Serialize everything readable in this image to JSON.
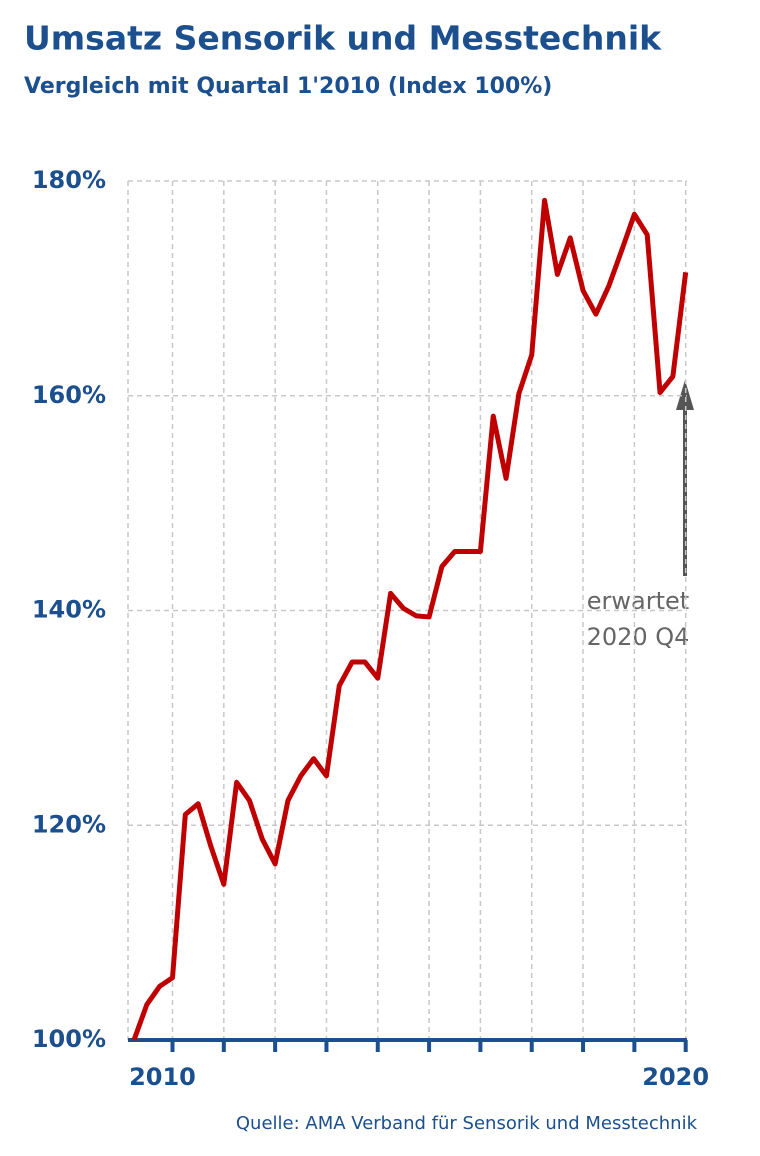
{
  "chart_data": {
    "type": "line",
    "title": "Umsatz Sensorik und Messtechnik",
    "subtitle": "Vergleich mit Quartal 1'2010 (Index 100%)",
    "categories": [
      null,
      null,
      null,
      "2010",
      null,
      null,
      null,
      null,
      null,
      null,
      null,
      null,
      null,
      null,
      null,
      null,
      null,
      null,
      null,
      null,
      null,
      null,
      null,
      null,
      null,
      null,
      null,
      null,
      null,
      null,
      null,
      null,
      null,
      null,
      null,
      null,
      null,
      null,
      null,
      null,
      null,
      null,
      null,
      "2020"
    ],
    "series": [
      {
        "name": "Umsatz",
        "color": "#c00000",
        "values": [
          100,
          103.3,
          105,
          105.8,
          121,
          122,
          118,
          114.5,
          124,
          122.3,
          118.7,
          116.4,
          122.3,
          124.6,
          126.2,
          124.6,
          133,
          135.2,
          135.2,
          133.7,
          141.6,
          140.2,
          139.5,
          139.4,
          144.1,
          145.5,
          145.5,
          145.5,
          158.1,
          152.3,
          160.2,
          163.8,
          178.2,
          171.3,
          174.7,
          169.8,
          167.6,
          170.2,
          173.5,
          176.9,
          175,
          160.3,
          161.8,
          171.5
        ]
      }
    ],
    "ylim": [
      100,
      180
    ],
    "yticks": [
      {
        "value": 100,
        "label": "100%"
      },
      {
        "value": 120,
        "label": "120%"
      },
      {
        "value": 140,
        "label": "140%"
      },
      {
        "value": 160,
        "label": "160%"
      },
      {
        "value": 180,
        "label": "180%"
      }
    ],
    "grid": true,
    "annotation": [
      "erwartet",
      "2020 Q4"
    ],
    "source": "Quelle: AMA Verband für Sensorik und Messtechnik"
  }
}
